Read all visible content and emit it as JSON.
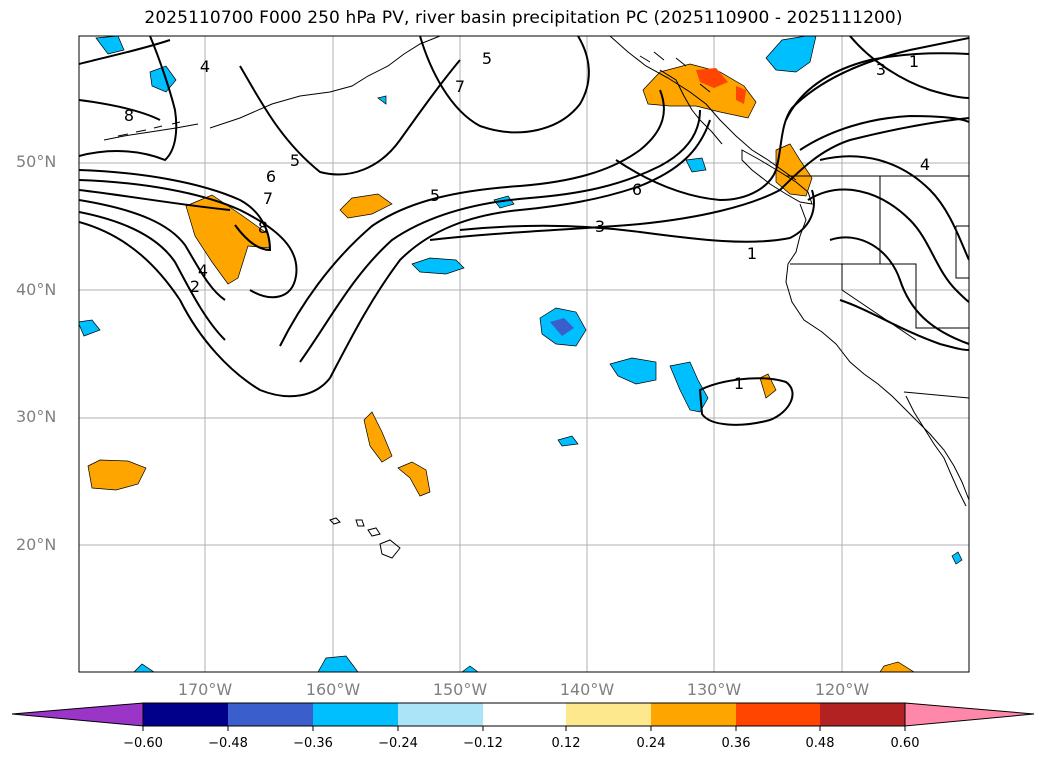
{
  "title": "2025110700 F000 250 hPa PV, river basin precipitation PC (2025110900 - 2025111200)",
  "lat_labels": [
    "50°N",
    "40°N",
    "30°N",
    "20°N"
  ],
  "lon_labels": [
    "170°W",
    "160°W",
    "150°W",
    "140°W",
    "130°W",
    "120°W"
  ],
  "pv_contour_labels": [
    "8",
    "4",
    "5",
    "7",
    "6",
    "5",
    "7",
    "8",
    "4",
    "2",
    "6",
    "5",
    "3",
    "1",
    "3",
    "1",
    "4",
    "1"
  ],
  "colorbar": {
    "colors": [
      "#9a35c8",
      "#00008b",
      "#3a5fcd",
      "#00bfff",
      "#abe3f7",
      "#ffffff",
      "#fde88e",
      "#ffa500",
      "#ff4500",
      "#b22222",
      "#ff88aa"
    ],
    "ticks": [
      "−0.60",
      "−0.48",
      "−0.36",
      "−0.24",
      "−0.12",
      "0.12",
      "0.24",
      "0.36",
      "0.48",
      "0.60"
    ]
  }
}
